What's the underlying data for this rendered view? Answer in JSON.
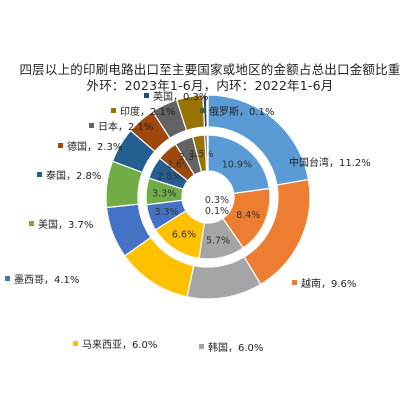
{
  "title_line1": "四层以上的印刷电路出口至主要国家或地区的金额占总出口金额比重",
  "title_line2": "外环：2023年1-6月，内环：2022年1-6月",
  "chart_data": {
    "type": "doughnut",
    "title": "四层以上的印刷电路出口至主要国家或地区的金额占总出口金额比重",
    "subtitle": "外环：2023年1-6月，内环：2022年1-6月",
    "categories": [
      "中国台湾",
      "越南",
      "韩国",
      "马来西亚",
      "墨西哥",
      "美国",
      "泰国",
      "德国",
      "日本",
      "印度",
      "英国",
      "俄罗斯"
    ],
    "colors": [
      "#5B9BD5",
      "#ED7D31",
      "#A5A5A5",
      "#FFC000",
      "#4472C4",
      "#70AD47",
      "#255E91",
      "#9E480E",
      "#636363",
      "#997300",
      "#264478",
      "#43682B"
    ],
    "series": [
      {
        "ring": "outer",
        "period": "2023年1-6月",
        "values": [
          11.2,
          9.6,
          6.0,
          6.0,
          4.1,
          3.7,
          2.8,
          2.3,
          2.1,
          2.1,
          0.3,
          0.1
        ]
      },
      {
        "ring": "inner",
        "period": "2022年1-6月",
        "values": [
          10.9,
          8.4,
          5.7,
          6.6,
          3.3,
          3.3,
          2.8,
          2.6,
          2.3,
          1.5,
          0.3,
          0.1
        ]
      }
    ],
    "outer_labels": [
      "中国台湾，11.2%",
      "越南，9.6%",
      "韩国，6.0%",
      "马来西亚，6.0%",
      "墨西哥，4.1%",
      "美国，3.7%",
      "泰国，2.8%",
      "德国，2.3%",
      "日本，2.1%",
      "印度，2.1%",
      "英国，0.3%",
      "俄罗斯，0.1%"
    ],
    "inner_labels": [
      "10.9%",
      "8.4%",
      "5.7%",
      "6.6%",
      "3.3%",
      "3.3%",
      "2.8%",
      "2.6%",
      "2.3%",
      "1.5%",
      "0.3%",
      "0.1%"
    ]
  }
}
